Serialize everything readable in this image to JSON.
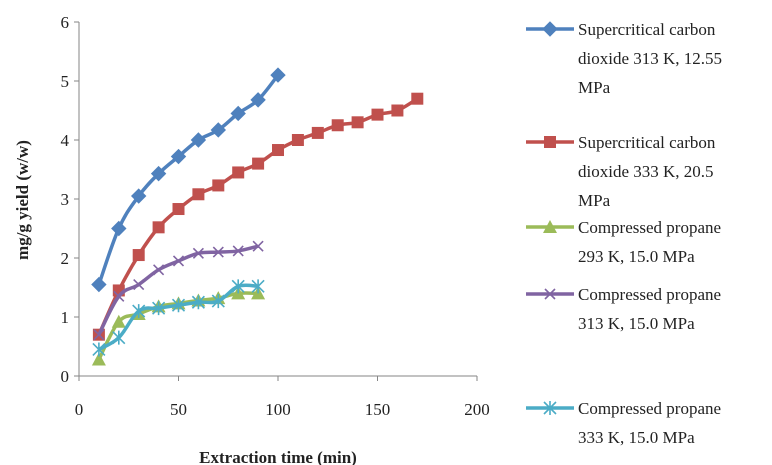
{
  "chart_data": {
    "type": "line",
    "xlabel": "Extraction time (min)",
    "ylabel": "mg/g yield  (w/w)",
    "xlim": [
      0,
      200
    ],
    "ylim": [
      0,
      6
    ],
    "x_ticks": [
      "0",
      "50",
      "100",
      "150",
      "200"
    ],
    "y_ticks": [
      "0",
      "1",
      "2",
      "3",
      "4",
      "5",
      "6"
    ],
    "grid": false,
    "legend_position": "right",
    "series": [
      {
        "name_lines": [
          "Supercritical carbon",
          "dioxide 313 K, 12.55",
          "MPa"
        ],
        "color": "#4F81BD",
        "marker": "diamond",
        "x": [
          10,
          20,
          30,
          40,
          50,
          60,
          70,
          80,
          90,
          100
        ],
        "y": [
          1.55,
          2.5,
          3.05,
          3.43,
          3.72,
          4.0,
          4.17,
          4.45,
          4.68,
          5.1
        ]
      },
      {
        "name_lines": [
          "Supercritical carbon",
          "dioxide 333 K, 20.5",
          "MPa"
        ],
        "color": "#C0504D",
        "marker": "square",
        "x": [
          10,
          20,
          30,
          40,
          50,
          60,
          70,
          80,
          90,
          100,
          110,
          120,
          130,
          140,
          150,
          160,
          170
        ],
        "y": [
          0.7,
          1.45,
          2.05,
          2.52,
          2.83,
          3.08,
          3.23,
          3.45,
          3.6,
          3.83,
          4.0,
          4.12,
          4.25,
          4.3,
          4.43,
          4.5,
          4.7
        ]
      },
      {
        "name_lines": [
          "Compressed propane",
          "293 K, 15.0 MPa"
        ],
        "color": "#9BBB59",
        "marker": "triangle",
        "x": [
          10,
          20,
          30,
          40,
          50,
          60,
          70,
          80,
          90
        ],
        "y": [
          0.28,
          0.92,
          1.05,
          1.18,
          1.23,
          1.28,
          1.32,
          1.4,
          1.4
        ]
      },
      {
        "name_lines": [
          "Compressed propane",
          "313 K, 15.0 MPa"
        ],
        "color": "#8064A2",
        "marker": "x",
        "x": [
          10,
          20,
          30,
          40,
          50,
          60,
          70,
          80,
          90
        ],
        "y": [
          0.7,
          1.35,
          1.55,
          1.8,
          1.95,
          2.08,
          2.1,
          2.12,
          2.2
        ]
      },
      {
        "name_lines": [
          "Compressed propane",
          "333 K, 15.0 MPa"
        ],
        "color": "#4BACC6",
        "marker": "star",
        "x": [
          10,
          20,
          30,
          40,
          50,
          60,
          70,
          80,
          90
        ],
        "y": [
          0.45,
          0.65,
          1.1,
          1.15,
          1.2,
          1.25,
          1.27,
          1.52,
          1.52
        ]
      }
    ]
  }
}
